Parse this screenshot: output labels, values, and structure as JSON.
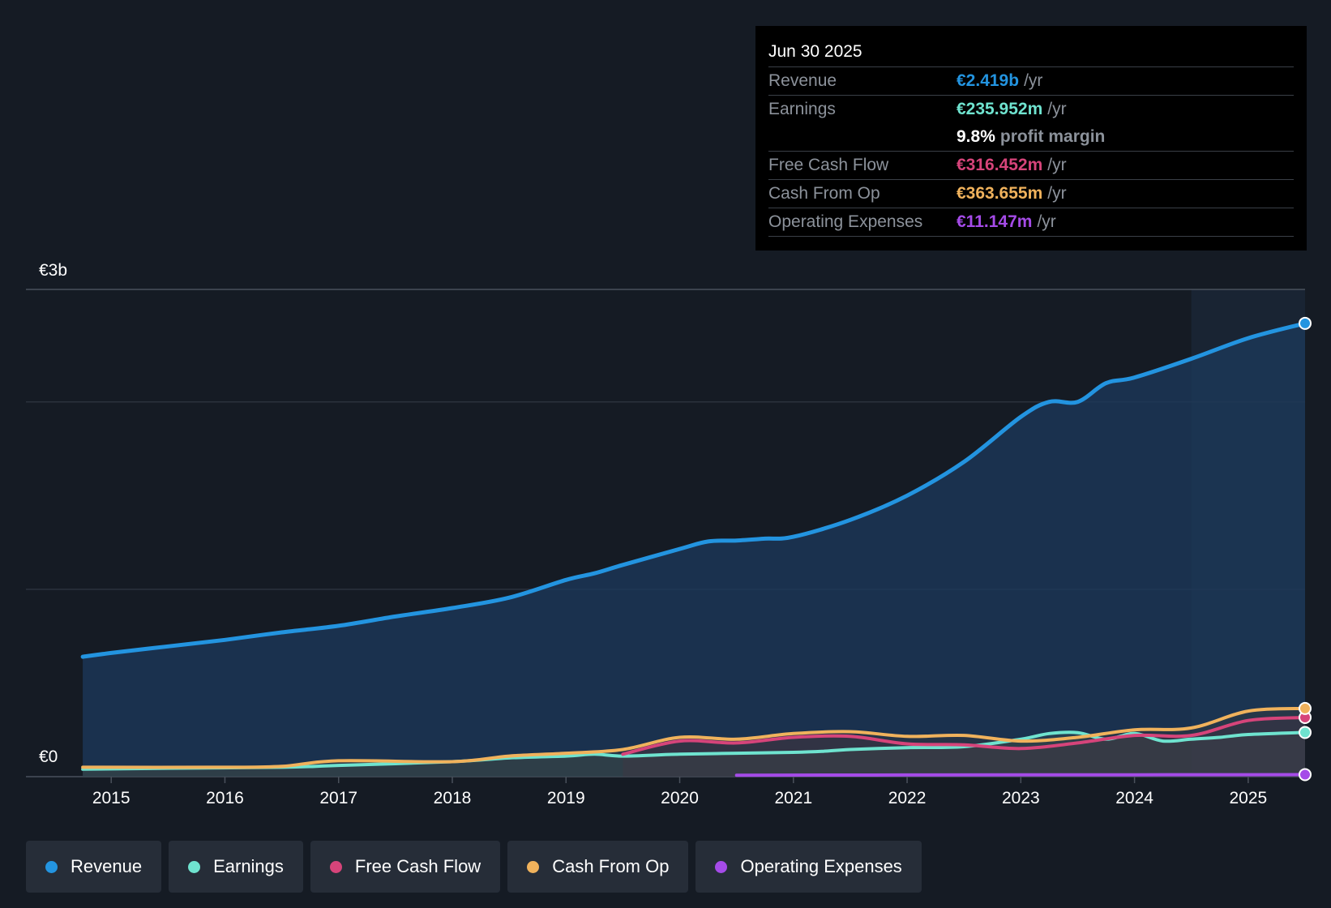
{
  "tooltip": {
    "date": "Jun 30 2025",
    "rows": [
      {
        "label": "Revenue",
        "value": "€2.419b",
        "unit": "/yr",
        "color": "#2394e0"
      },
      {
        "label": "Earnings",
        "value": "€235.952m",
        "unit": "/yr",
        "color": "#6fe3cf"
      },
      {
        "label": "",
        "value": "9.8%",
        "unit": "profit margin",
        "color": "#ffffff"
      },
      {
        "label": "Free Cash Flow",
        "value": "€316.452m",
        "unit": "/yr",
        "color": "#d6447a"
      },
      {
        "label": "Cash From Op",
        "value": "€363.655m",
        "unit": "/yr",
        "color": "#f0b25c"
      },
      {
        "label": "Operating Expenses",
        "value": "€11.147m",
        "unit": "/yr",
        "color": "#a54be8"
      }
    ]
  },
  "legend": [
    {
      "label": "Revenue",
      "color": "#2394e0"
    },
    {
      "label": "Earnings",
      "color": "#6fe3cf"
    },
    {
      "label": "Free Cash Flow",
      "color": "#d6447a"
    },
    {
      "label": "Cash From Op",
      "color": "#f0b25c"
    },
    {
      "label": "Operating Expenses",
      "color": "#a54be8"
    }
  ],
  "chart_data": {
    "type": "area",
    "title": "",
    "xlabel": "",
    "ylabel": "",
    "y_top_label": "€3b",
    "y_bottom_label": "€0",
    "ylim": [
      0,
      2.6
    ],
    "xlim": [
      2014.25,
      2025.5
    ],
    "x_ticks": [
      "2015",
      "2016",
      "2017",
      "2018",
      "2019",
      "2020",
      "2021",
      "2022",
      "2023",
      "2024",
      "2025"
    ],
    "gridlines": [
      0,
      1.0,
      2.0,
      2.6
    ],
    "forecast_start": 2024.5,
    "series": [
      {
        "name": "Revenue",
        "unit": "€b",
        "color": "#2394e0",
        "points": [
          [
            2014.75,
            0.64
          ],
          [
            2015.0,
            0.66
          ],
          [
            2015.5,
            0.695
          ],
          [
            2016.0,
            0.73
          ],
          [
            2016.5,
            0.77
          ],
          [
            2017.0,
            0.805
          ],
          [
            2017.5,
            0.855
          ],
          [
            2018.0,
            0.9
          ],
          [
            2018.5,
            0.955
          ],
          [
            2019.0,
            1.05
          ],
          [
            2019.25,
            1.085
          ],
          [
            2019.5,
            1.13
          ],
          [
            2020.0,
            1.215
          ],
          [
            2020.25,
            1.255
          ],
          [
            2020.5,
            1.26
          ],
          [
            2020.75,
            1.27
          ],
          [
            2021.0,
            1.28
          ],
          [
            2021.5,
            1.37
          ],
          [
            2022.0,
            1.5
          ],
          [
            2022.5,
            1.68
          ],
          [
            2023.0,
            1.92
          ],
          [
            2023.25,
            2.0
          ],
          [
            2023.5,
            2.0
          ],
          [
            2023.75,
            2.1
          ],
          [
            2024.0,
            2.13
          ],
          [
            2024.5,
            2.23
          ],
          [
            2025.0,
            2.34
          ],
          [
            2025.5,
            2.419
          ]
        ]
      },
      {
        "name": "Earnings",
        "unit": "€b",
        "color": "#6fe3cf",
        "points": [
          [
            2014.75,
            0.04
          ],
          [
            2015.5,
            0.045
          ],
          [
            2016.5,
            0.05
          ],
          [
            2017.0,
            0.06
          ],
          [
            2018.0,
            0.08
          ],
          [
            2018.5,
            0.1
          ],
          [
            2019.0,
            0.11
          ],
          [
            2019.25,
            0.12
          ],
          [
            2019.5,
            0.11
          ],
          [
            2020.0,
            0.12
          ],
          [
            2020.5,
            0.125
          ],
          [
            2021.0,
            0.13
          ],
          [
            2021.25,
            0.135
          ],
          [
            2021.5,
            0.145
          ],
          [
            2022.0,
            0.155
          ],
          [
            2022.5,
            0.16
          ],
          [
            2023.0,
            0.2
          ],
          [
            2023.25,
            0.23
          ],
          [
            2023.5,
            0.235
          ],
          [
            2023.75,
            0.2
          ],
          [
            2024.0,
            0.23
          ],
          [
            2024.25,
            0.19
          ],
          [
            2024.5,
            0.2
          ],
          [
            2024.75,
            0.21
          ],
          [
            2025.0,
            0.225
          ],
          [
            2025.5,
            0.236
          ]
        ]
      },
      {
        "name": "Free Cash Flow",
        "unit": "€b",
        "color": "#d6447a",
        "points": [
          [
            2019.5,
            0.12
          ],
          [
            2020.0,
            0.19
          ],
          [
            2020.5,
            0.18
          ],
          [
            2021.0,
            0.21
          ],
          [
            2021.5,
            0.215
          ],
          [
            2022.0,
            0.175
          ],
          [
            2022.5,
            0.17
          ],
          [
            2023.0,
            0.15
          ],
          [
            2023.5,
            0.18
          ],
          [
            2024.0,
            0.22
          ],
          [
            2024.5,
            0.22
          ],
          [
            2025.0,
            0.3
          ],
          [
            2025.5,
            0.316
          ]
        ]
      },
      {
        "name": "Cash From Op",
        "unit": "€b",
        "color": "#f0b25c",
        "points": [
          [
            2014.75,
            0.05
          ],
          [
            2016.0,
            0.05
          ],
          [
            2016.5,
            0.055
          ],
          [
            2017.0,
            0.085
          ],
          [
            2018.0,
            0.08
          ],
          [
            2018.5,
            0.11
          ],
          [
            2019.0,
            0.125
          ],
          [
            2019.5,
            0.145
          ],
          [
            2020.0,
            0.21
          ],
          [
            2020.5,
            0.2
          ],
          [
            2021.0,
            0.23
          ],
          [
            2021.5,
            0.24
          ],
          [
            2022.0,
            0.215
          ],
          [
            2022.5,
            0.22
          ],
          [
            2023.0,
            0.19
          ],
          [
            2023.5,
            0.21
          ],
          [
            2024.0,
            0.25
          ],
          [
            2024.5,
            0.26
          ],
          [
            2025.0,
            0.35
          ],
          [
            2025.5,
            0.364
          ]
        ]
      },
      {
        "name": "Operating Expenses",
        "unit": "€b",
        "color": "#a54be8",
        "points": [
          [
            2020.5,
            0.008
          ],
          [
            2022.0,
            0.009
          ],
          [
            2024.0,
            0.01
          ],
          [
            2025.5,
            0.011
          ]
        ]
      }
    ]
  }
}
